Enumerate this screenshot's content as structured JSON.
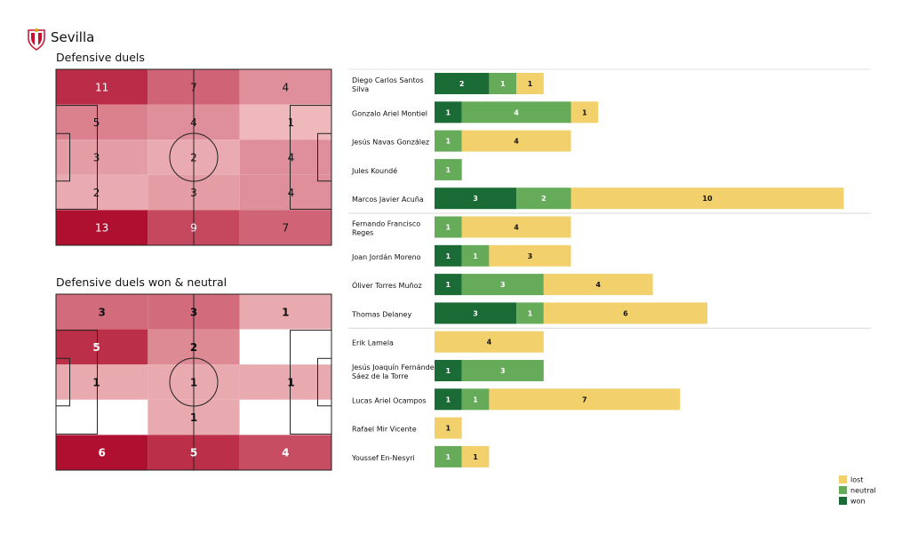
{
  "team": {
    "name": "Sevilla"
  },
  "chart_data": [
    {
      "type": "heatmap",
      "title": "Defensive duels",
      "grid_rows": 5,
      "grid_cols": 3,
      "cells": [
        [
          11,
          7,
          4
        ],
        [
          5,
          4,
          1
        ],
        [
          3,
          2,
          4
        ],
        [
          2,
          3,
          4
        ],
        [
          13,
          9,
          7
        ]
      ],
      "colorscale": [
        "#fde0dd",
        "#b0102f"
      ]
    },
    {
      "type": "heatmap",
      "title": "Defensive duels won & neutral",
      "grid_rows": 5,
      "grid_cols": 3,
      "cells": [
        [
          3,
          3,
          1
        ],
        [
          5,
          2,
          null
        ],
        [
          1,
          1,
          1
        ],
        [
          null,
          1,
          null
        ],
        [
          6,
          5,
          4
        ]
      ],
      "colorscale": [
        "#fde0dd",
        "#b0102f"
      ]
    },
    {
      "type": "bar",
      "orientation": "horizontal",
      "stacked": true,
      "categories": [
        "Diego Carlos Santos Silva",
        "Gonzalo Ariel Montiel",
        "Jesús Navas González",
        "Jules Koundé",
        "Marcos Javier Acuña",
        "Fernando Francisco Reges",
        "Joan Jordán Moreno",
        "Óliver Torres Muñoz",
        "Thomas Delaney",
        "Erik Lamela",
        "Jesús Joaquín Fernández Sáez de la Torre",
        "Lucas Ariel Ocampos",
        "Rafael Mir Vicente",
        "Youssef En-Nesyri"
      ],
      "groups_after_index": [
        4,
        8
      ],
      "series": [
        {
          "name": "won",
          "color": "#1a6b35",
          "values": [
            2,
            1,
            0,
            0,
            3,
            0,
            1,
            1,
            3,
            0,
            1,
            1,
            0,
            0
          ]
        },
        {
          "name": "neutral",
          "color": "#66ab59",
          "values": [
            1,
            4,
            1,
            1,
            2,
            1,
            1,
            3,
            1,
            0,
            3,
            1,
            0,
            1
          ]
        },
        {
          "name": "lost",
          "color": "#f2d06b",
          "values": [
            1,
            1,
            4,
            0,
            10,
            4,
            3,
            4,
            6,
            4,
            0,
            7,
            1,
            1
          ]
        }
      ],
      "legend_position": "bottom-right"
    }
  ]
}
